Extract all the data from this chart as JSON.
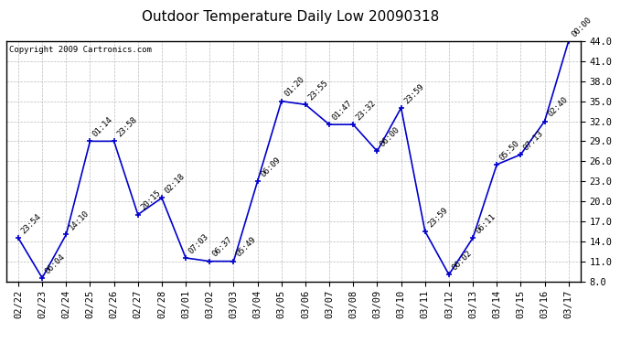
{
  "title": "Outdoor Temperature Daily Low 20090318",
  "copyright": "Copyright 2009 Cartronics.com",
  "dates": [
    "02/22",
    "02/23",
    "02/24",
    "02/25",
    "02/26",
    "02/27",
    "02/28",
    "03/01",
    "03/02",
    "03/03",
    "03/04",
    "03/05",
    "03/06",
    "03/07",
    "03/08",
    "03/09",
    "03/10",
    "03/11",
    "03/12",
    "03/13",
    "03/14",
    "03/15",
    "03/16",
    "03/17"
  ],
  "values": [
    14.5,
    8.5,
    15.0,
    29.0,
    29.0,
    18.0,
    20.5,
    11.5,
    11.0,
    11.0,
    23.0,
    35.0,
    34.5,
    31.5,
    31.5,
    27.5,
    34.0,
    15.5,
    9.0,
    14.5,
    25.5,
    27.0,
    32.0,
    44.0
  ],
  "time_labels": [
    "23:54",
    "06:04",
    "14:10",
    "01:14",
    "23:58",
    "20:15",
    "02:18",
    "07:03",
    "06:37",
    "05:49",
    "06:09",
    "01:20",
    "23:55",
    "01:47",
    "23:32",
    "06:00",
    "23:59",
    "23:59",
    "06:02",
    "06:11",
    "05:50",
    "07:13",
    "02:40",
    "00:00"
  ],
  "ylim": [
    8.0,
    44.0
  ],
  "yticks": [
    8.0,
    11.0,
    14.0,
    17.0,
    20.0,
    23.0,
    26.0,
    29.0,
    32.0,
    35.0,
    38.0,
    41.0,
    44.0
  ],
  "line_color": "#0000cc",
  "marker_color": "#0000cc",
  "bg_color": "#ffffff",
  "plot_bg_color": "#ffffff",
  "grid_color": "#bbbbbb",
  "title_fontsize": 11,
  "copyright_fontsize": 6.5,
  "label_fontsize": 6.5,
  "tick_fontsize": 7.5
}
